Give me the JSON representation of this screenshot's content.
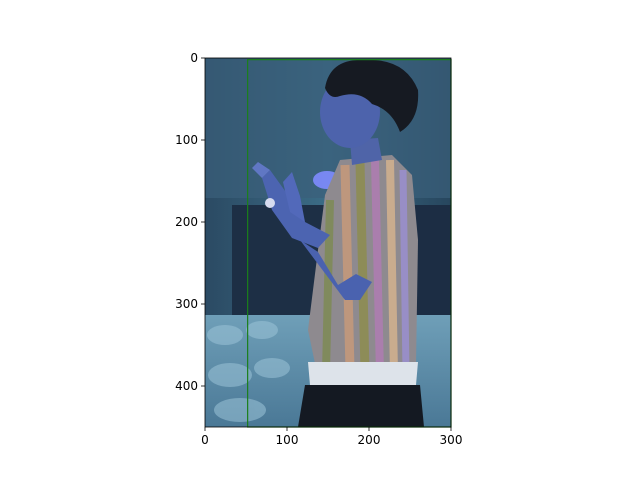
{
  "figure": {
    "image_alt": "Photo of a person in a striped shirt clapping, blue-tinted",
    "x_ticks": [
      "0",
      "100",
      "200",
      "300"
    ],
    "y_ticks": [
      "0",
      "100",
      "200",
      "300",
      "400"
    ],
    "x_range": [
      0,
      300
    ],
    "y_range": [
      0,
      450
    ],
    "overlay_color": "#1a7f1a",
    "overlay_box_data": {
      "x0": 52,
      "y0": 2,
      "x1": 300,
      "y1": 450
    }
  }
}
